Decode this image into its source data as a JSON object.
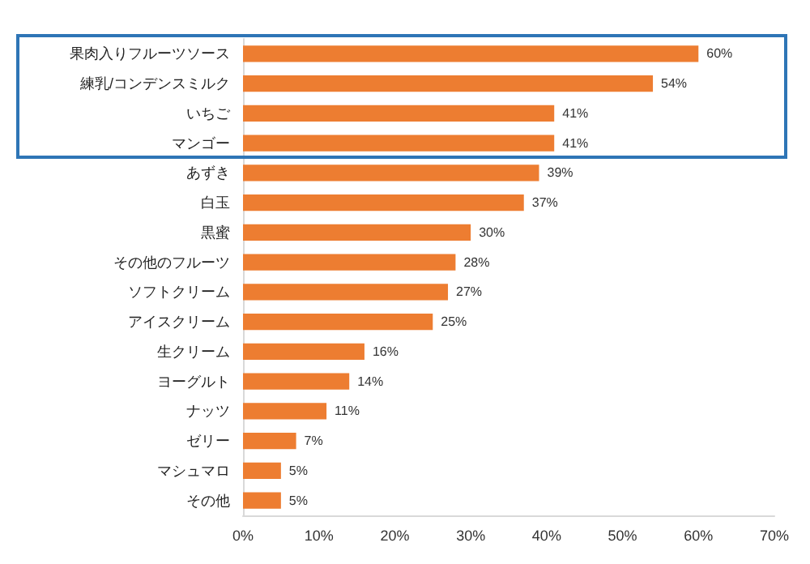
{
  "chart_data": {
    "type": "bar",
    "orientation": "horizontal",
    "categories": [
      "果肉入りフルーツソース",
      "練乳/コンデンスミルク",
      "いちご",
      "マンゴー",
      "あずき",
      "白玉",
      "黒蜜",
      "その他のフルーツ",
      "ソフトクリーム",
      "アイスクリーム",
      "生クリーム",
      "ヨーグルト",
      "ナッツ",
      "ゼリー",
      "マシュマロ",
      "その他"
    ],
    "values": [
      60,
      54,
      41,
      41,
      39,
      37,
      30,
      28,
      27,
      25,
      16,
      14,
      11,
      7,
      5,
      5
    ],
    "value_labels": [
      "60%",
      "54%",
      "41%",
      "41%",
      "39%",
      "37%",
      "30%",
      "28%",
      "27%",
      "25%",
      "16%",
      "14%",
      "11%",
      "7%",
      "5%",
      "5%"
    ],
    "color": "#ed7d31",
    "xlim": [
      0,
      70
    ],
    "xticks": [
      {
        "value": 0,
        "label": "0%"
      },
      {
        "value": 10,
        "label": "10%"
      },
      {
        "value": 20,
        "label": "20%"
      },
      {
        "value": 30,
        "label": "30%"
      },
      {
        "value": 40,
        "label": "40%"
      },
      {
        "value": 50,
        "label": "50%"
      },
      {
        "value": 60,
        "label": "60%"
      },
      {
        "value": 70,
        "label": "70%"
      }
    ],
    "grid": false
  }
}
